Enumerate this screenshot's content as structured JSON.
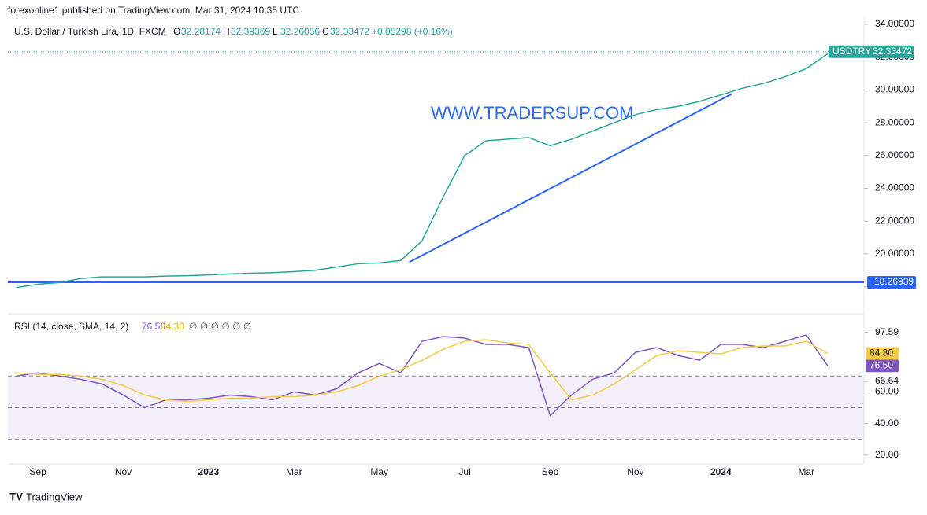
{
  "header": {
    "publisher": "forexonline1 published on TradingView.com, Mar 31, 2024 10:35 UTC",
    "symbol": "U.S. Dollar / Turkish Lira, 1D, FXCM",
    "ohlc": [
      {
        "key": "O",
        "value": 32.28174
      },
      {
        "key": "H",
        "value": 32.39369
      },
      {
        "key": "L",
        "value": 32.26056
      },
      {
        "key": "C",
        "value": 32.33472
      }
    ],
    "change": "+0.05298 (+0.16%)",
    "watermark": "WWW.TRADERSUP.COM"
  },
  "chart_data": [
    {
      "type": "line",
      "ticker": "USDTRY",
      "last": 32.33472,
      "hline": 18.26939,
      "hline_color": "#2962ff",
      "categories": [
        null,
        "Sep",
        null,
        null,
        null,
        "Nov",
        null,
        null,
        null,
        "2023",
        null,
        null,
        null,
        "Mar",
        null,
        null,
        null,
        "May",
        null,
        null,
        null,
        "Jul",
        null,
        null,
        null,
        "Sep",
        null,
        null,
        null,
        "Nov",
        null,
        null,
        null,
        "2024",
        null,
        null,
        null,
        "Mar",
        null
      ],
      "series": [
        {
          "name": "USDTRY",
          "color": "#26a69a",
          "values": [
            17.95,
            18.15,
            18.25,
            18.5,
            18.6,
            18.6,
            18.6,
            18.65,
            18.67,
            18.72,
            18.78,
            18.82,
            18.86,
            18.92,
            19.0,
            19.2,
            19.4,
            19.45,
            19.6,
            20.8,
            23.5,
            26.0,
            26.9,
            27.0,
            27.1,
            26.6,
            27.0,
            27.5,
            28.0,
            28.5,
            28.8,
            29.0,
            29.3,
            29.7,
            30.1,
            30.4,
            30.8,
            31.3,
            32.2
          ]
        }
      ],
      "trend_line": {
        "x": [
          18.4,
          33.5
        ],
        "y": [
          19.5,
          29.75
        ],
        "color": "#2962ff"
      },
      "ylim": [
        16.4,
        34.43
      ],
      "yticks": [
        {
          "value": 18,
          "label": "18.00000"
        },
        {
          "value": 20,
          "label": "20.00000"
        },
        {
          "value": 22,
          "label": "22.00000"
        },
        {
          "value": 24,
          "label": "24.00000"
        },
        {
          "value": 26,
          "label": "26.00000"
        },
        {
          "value": 28,
          "label": "28.00000"
        },
        {
          "value": 30,
          "label": "30.00000"
        },
        {
          "value": 32,
          "label": "32.00000"
        },
        {
          "value": 34,
          "label": "34.00000"
        }
      ]
    },
    {
      "type": "line",
      "title": "RSI (14, close, SMA, 14, 2)",
      "symbols": "∅ ∅ ∅ ∅ ∅ ∅",
      "series": [
        {
          "name": "RSI",
          "color": "#7e57c2",
          "values": [
            70,
            72,
            70,
            68,
            65,
            58,
            50,
            55,
            55,
            56,
            58,
            57,
            55,
            60,
            58,
            62,
            72,
            78,
            72,
            92,
            95,
            94,
            90,
            90,
            88,
            45,
            58,
            68,
            72,
            85,
            88,
            83,
            80,
            90,
            90,
            88,
            92,
            96,
            76.5
          ],
          "value_labels": [
            null,
            null,
            null,
            null,
            null,
            null,
            null,
            null,
            null,
            null,
            null,
            null,
            null,
            null,
            null,
            null,
            null,
            null,
            null,
            null,
            null,
            null,
            null,
            null,
            null,
            null,
            null,
            null,
            null,
            null,
            null,
            null,
            null,
            null,
            null,
            null,
            null,
            null,
            "76.50"
          ]
        },
        {
          "name": "RSI-based MA",
          "color": "#f7c948",
          "values": [
            72,
            71,
            71,
            70,
            68,
            64,
            58,
            55,
            54,
            55,
            56,
            56,
            57,
            57,
            58,
            60,
            64,
            70,
            74,
            80,
            87,
            92,
            93,
            91,
            90,
            72,
            55,
            58,
            65,
            74,
            83,
            86,
            85,
            84,
            88,
            89,
            89,
            92,
            84.3
          ],
          "value_labels": [
            null,
            null,
            null,
            null,
            null,
            null,
            null,
            null,
            null,
            null,
            null,
            null,
            null,
            null,
            null,
            null,
            null,
            null,
            null,
            null,
            null,
            null,
            null,
            null,
            null,
            null,
            null,
            null,
            null,
            null,
            null,
            null,
            null,
            null,
            null,
            null,
            null,
            null,
            "84.30"
          ]
        }
      ],
      "bands": [
        30,
        50,
        70
      ],
      "levels": [
        {
          "value": 66.64,
          "label": "66.64"
        },
        {
          "value": 97.59,
          "label": "97.59"
        }
      ],
      "ylim": [
        14.5,
        108.9
      ],
      "yticks": [
        {
          "value": 20,
          "label": "20.00"
        },
        {
          "value": 40,
          "label": "40.00"
        },
        {
          "value": 60,
          "label": "60.00"
        }
      ]
    }
  ],
  "footer": "TradingView"
}
